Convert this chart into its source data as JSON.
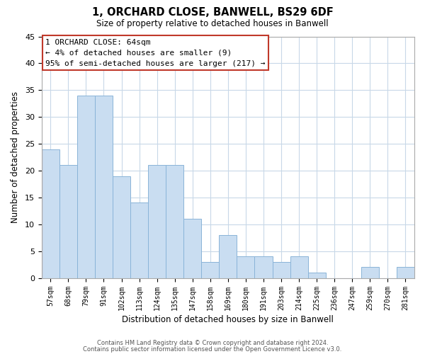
{
  "title": "1, ORCHARD CLOSE, BANWELL, BS29 6DF",
  "subtitle": "Size of property relative to detached houses in Banwell",
  "xlabel": "Distribution of detached houses by size in Banwell",
  "ylabel": "Number of detached properties",
  "bin_labels": [
    "57sqm",
    "68sqm",
    "79sqm",
    "91sqm",
    "102sqm",
    "113sqm",
    "124sqm",
    "135sqm",
    "147sqm",
    "158sqm",
    "169sqm",
    "180sqm",
    "191sqm",
    "203sqm",
    "214sqm",
    "225sqm",
    "236sqm",
    "247sqm",
    "259sqm",
    "270sqm",
    "281sqm"
  ],
  "bar_heights": [
    24,
    21,
    34,
    34,
    19,
    14,
    21,
    21,
    11,
    3,
    8,
    4,
    4,
    3,
    4,
    1,
    0,
    0,
    2,
    0,
    2
  ],
  "bar_color": "#c9ddf1",
  "bar_edge_color": "#8ab4d8",
  "highlight_bar_index": 0,
  "highlight_edge_color": "#c0392b",
  "ylim": [
    0,
    45
  ],
  "yticks": [
    0,
    5,
    10,
    15,
    20,
    25,
    30,
    35,
    40,
    45
  ],
  "annotation_title": "1 ORCHARD CLOSE: 64sqm",
  "annotation_line1": "← 4% of detached houses are smaller (9)",
  "annotation_line2": "95% of semi-detached houses are larger (217) →",
  "annotation_box_color": "#ffffff",
  "annotation_box_edge": "#c0392b",
  "footer_line1": "Contains HM Land Registry data © Crown copyright and database right 2024.",
  "footer_line2": "Contains public sector information licensed under the Open Government Licence v3.0.",
  "background_color": "#ffffff",
  "grid_color": "#c8d8e8"
}
